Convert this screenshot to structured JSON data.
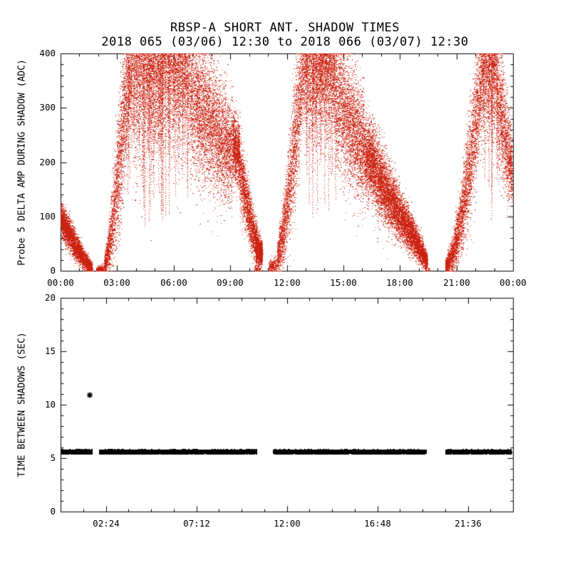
{
  "header": {
    "title": "RBSP-A SHORT ANT. SHADOW TIMES",
    "subtitle": "2018 065 (03/06) 12:30 to 2018 066 (03/07) 12:30"
  },
  "chart_data": [
    {
      "type": "scatter",
      "panel": "top",
      "ylabel": "Probe 5 DELTA AMP DURING SHADOW (ADC)",
      "xlim": [
        0,
        24
      ],
      "ylim": [
        0,
        400
      ],
      "grid": false,
      "xticks": {
        "values": [
          0,
          3,
          6,
          9,
          12,
          15,
          18,
          21,
          24
        ],
        "labels": [
          "00:00",
          "03:00",
          "06:00",
          "09:00",
          "12:00",
          "15:00",
          "18:00",
          "21:00",
          "00:00"
        ]
      },
      "xminor_step": 1,
      "yticks": {
        "values": [
          0,
          100,
          200,
          300,
          400
        ],
        "labels": [
          "0",
          "100",
          "200",
          "300",
          "400"
        ]
      },
      "yminor_step": 20,
      "marker": {
        "shape": "dot",
        "color": "#cc2211",
        "size": 1
      },
      "series": [
        {
          "name": "probe5-delta-amp-during-shadow",
          "segments": [
            {
              "pts": [
                [
                  0.02,
                  95,
                  16
                ],
                [
                  0.35,
                  74,
                  14
                ],
                [
                  0.8,
                  46,
                  12
                ],
                [
                  1.3,
                  18,
                  8
                ],
                [
                  1.68,
                  5,
                  4
                ]
              ],
              "density": 2600
            },
            {
              "pts": [
                [
                  1.9,
                  2,
                  2
                ],
                [
                  2.28,
                  4,
                  4
                ]
              ],
              "density": 700
            },
            {
              "pts": [
                [
                  2.32,
                  8,
                  6
                ],
                [
                  2.6,
                  48,
                  24
                ],
                [
                  2.9,
                  128,
                  46
                ],
                [
                  3.2,
                  225,
                  62
                ],
                [
                  3.5,
                  318,
                  64
                ],
                [
                  3.78,
                  382,
                  46
                ]
              ],
              "density": 1900
            },
            {
              "pts": [
                [
                  3.78,
                  335,
                  85
                ],
                [
                  4.4,
                  345,
                  85
                ],
                [
                  5.0,
                  352,
                  80
                ],
                [
                  5.6,
                  356,
                  76
                ],
                [
                  6.2,
                  350,
                  72
                ],
                [
                  6.85,
                  340,
                  70
                ]
              ],
              "density": 1700,
              "topfill": true
            },
            {
              "pts": [
                [
                  6.85,
                  328,
                  66
                ],
                [
                  7.4,
                  298,
                  62
                ],
                [
                  8.0,
                  266,
                  58
                ],
                [
                  8.6,
                  240,
                  52
                ],
                [
                  9.15,
                  218,
                  42
                ]
              ],
              "density": 2000
            },
            {
              "pts": [
                [
                  9.15,
                  232,
                  30
                ],
                [
                  9.5,
                  212,
                  28
                ]
              ],
              "density": 3000
            },
            {
              "pts": [
                [
                  9.5,
                  186,
                  34
                ],
                [
                  9.9,
                  122,
                  28
                ],
                [
                  10.2,
                  72,
                  22
                ],
                [
                  10.45,
                  46,
                  16
                ]
              ],
              "density": 2200
            },
            {
              "pts": [
                [
                  10.35,
                  44,
                  16
                ],
                [
                  10.7,
                  30,
                  12
                ]
              ],
              "density": 3200
            },
            {
              "pts": [
                [
                  10.3,
                  3,
                  3
                ],
                [
                  10.6,
                  2,
                  2
                ]
              ],
              "density": 260
            },
            {
              "pts": [
                [
                  11.05,
                  5,
                  5
                ],
                [
                  11.45,
                  12,
                  9
                ]
              ],
              "density": 650
            },
            {
              "pts": [
                [
                  11.5,
                  22,
                  13
                ],
                [
                  11.8,
                  70,
                  28
                ],
                [
                  12.1,
                  140,
                  42
                ],
                [
                  12.4,
                  235,
                  56
                ],
                [
                  12.7,
                  328,
                  56
                ],
                [
                  12.95,
                  382,
                  42
                ]
              ],
              "density": 1900
            },
            {
              "pts": [
                [
                  12.95,
                  345,
                  72
                ],
                [
                  13.5,
                  356,
                  70
                ],
                [
                  14.0,
                  360,
                  66
                ],
                [
                  14.55,
                  350,
                  70
                ]
              ],
              "density": 1800,
              "topfill": true
            },
            {
              "pts": [
                [
                  14.55,
                  328,
                  64
                ],
                [
                  15.1,
                  290,
                  58
                ],
                [
                  15.7,
                  250,
                  54
                ],
                [
                  16.15,
                  225,
                  48
                ]
              ],
              "density": 2000
            },
            {
              "pts": [
                [
                  16.15,
                  212,
                  36
                ],
                [
                  16.65,
                  196,
                  34
                ]
              ],
              "density": 2800
            },
            {
              "pts": [
                [
                  16.65,
                  186,
                  36
                ],
                [
                  17.2,
                  150,
                  30
                ],
                [
                  17.8,
                  114,
                  24
                ],
                [
                  18.4,
                  80,
                  18
                ],
                [
                  19.0,
                  46,
                  13
                ],
                [
                  19.45,
                  16,
                  8
                ]
              ],
              "density": 2600
            },
            {
              "pts": [
                [
                  19.5,
                  2,
                  2
                ],
                [
                  19.6,
                  2,
                  2
                ]
              ],
              "density": 200
            },
            {
              "pts": [
                [
                  20.42,
                  6,
                  6
                ],
                [
                  20.8,
                  30,
                  16
                ],
                [
                  21.2,
                  86,
                  30
                ],
                [
                  21.6,
                  170,
                  44
                ],
                [
                  22.0,
                  264,
                  54
                ],
                [
                  22.32,
                  348,
                  48
                ]
              ],
              "density": 1900
            },
            {
              "pts": [
                [
                  22.32,
                  342,
                  62
                ],
                [
                  22.8,
                  354,
                  60
                ],
                [
                  23.12,
                  344,
                  58
                ]
              ],
              "density": 1800,
              "topfill": true
            },
            {
              "pts": [
                [
                  23.12,
                  318,
                  54
                ],
                [
                  23.5,
                  264,
                  48
                ],
                [
                  23.75,
                  216,
                  40
                ],
                [
                  23.97,
                  182,
                  30
                ]
              ],
              "density": 2000
            }
          ]
        }
      ],
      "streaks": {
        "regions": [
          [
            3.4,
            6.9
          ],
          [
            12.95,
            14.6
          ],
          [
            22.3,
            23.2
          ]
        ],
        "per_hour": 16,
        "max_depth": 260
      }
    },
    {
      "type": "scatter",
      "panel": "bottom",
      "ylabel": "TIME BETWEEN SHADOWS (SEC)",
      "xlim": [
        0,
        24
      ],
      "ylim": [
        0,
        20
      ],
      "grid": false,
      "xticks": {
        "values": [
          2.4,
          7.2,
          12.0,
          16.8,
          21.6
        ],
        "labels": [
          "02:24",
          "07:12",
          "12:00",
          "16:48",
          "21:36"
        ]
      },
      "xminor_step": 1.2,
      "yticks": {
        "values": [
          0,
          5,
          10,
          15,
          20
        ],
        "labels": [
          "0",
          "5",
          "10",
          "15",
          "20"
        ]
      },
      "yminor_step": 1,
      "marker": {
        "shape": "asterisk",
        "color": "#000000",
        "size": 2
      },
      "band": {
        "value": 5.55,
        "half_width": 0.19,
        "segments": [
          [
            0.08,
            1.7
          ],
          [
            2.1,
            10.42
          ],
          [
            11.3,
            19.42
          ],
          [
            20.45,
            23.93
          ]
        ]
      },
      "outliers": [
        {
          "t": 1.55,
          "value": 10.9
        }
      ]
    }
  ]
}
